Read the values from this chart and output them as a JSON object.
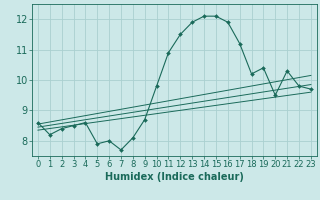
{
  "title": "",
  "xlabel": "Humidex (Indice chaleur)",
  "ylabel": "",
  "bg_color": "#cce8e8",
  "grid_color": "#aad0d0",
  "line_color": "#1a6a5a",
  "xlim": [
    -0.5,
    23.5
  ],
  "ylim": [
    7.5,
    12.5
  ],
  "xticks": [
    0,
    1,
    2,
    3,
    4,
    5,
    6,
    7,
    8,
    9,
    10,
    11,
    12,
    13,
    14,
    15,
    16,
    17,
    18,
    19,
    20,
    21,
    22,
    23
  ],
  "yticks": [
    8,
    9,
    10,
    11,
    12
  ],
  "main_series": {
    "x": [
      0,
      1,
      2,
      3,
      4,
      5,
      6,
      7,
      8,
      9,
      10,
      11,
      12,
      13,
      14,
      15,
      16,
      17,
      18,
      19,
      20,
      21,
      22,
      23
    ],
    "y": [
      8.6,
      8.2,
      8.4,
      8.5,
      8.6,
      7.9,
      8.0,
      7.7,
      8.1,
      8.7,
      9.8,
      10.9,
      11.5,
      11.9,
      12.1,
      12.1,
      11.9,
      11.2,
      10.2,
      10.4,
      9.5,
      10.3,
      9.8,
      9.7
    ]
  },
  "trend_lines": [
    {
      "x": [
        0,
        23
      ],
      "y": [
        8.55,
        10.15
      ]
    },
    {
      "x": [
        0,
        23
      ],
      "y": [
        8.45,
        9.85
      ]
    },
    {
      "x": [
        0,
        23
      ],
      "y": [
        8.35,
        9.6
      ]
    }
  ],
  "tick_fontsize": 6,
  "xlabel_fontsize": 7
}
